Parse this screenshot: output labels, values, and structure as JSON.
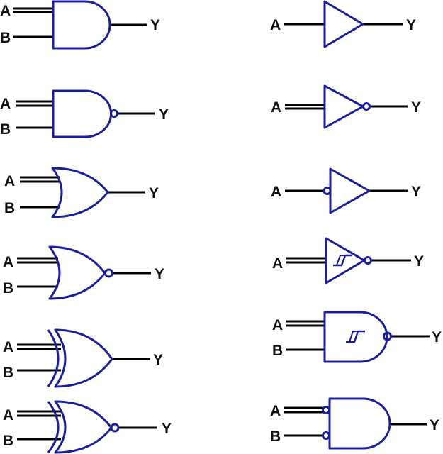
{
  "labels": {
    "input_a": "A",
    "input_b": "B",
    "output_y": "Y"
  },
  "colors": {
    "gate_stroke": "#1b1f9e",
    "wire": "#000000",
    "background": "#ffffff"
  }
}
